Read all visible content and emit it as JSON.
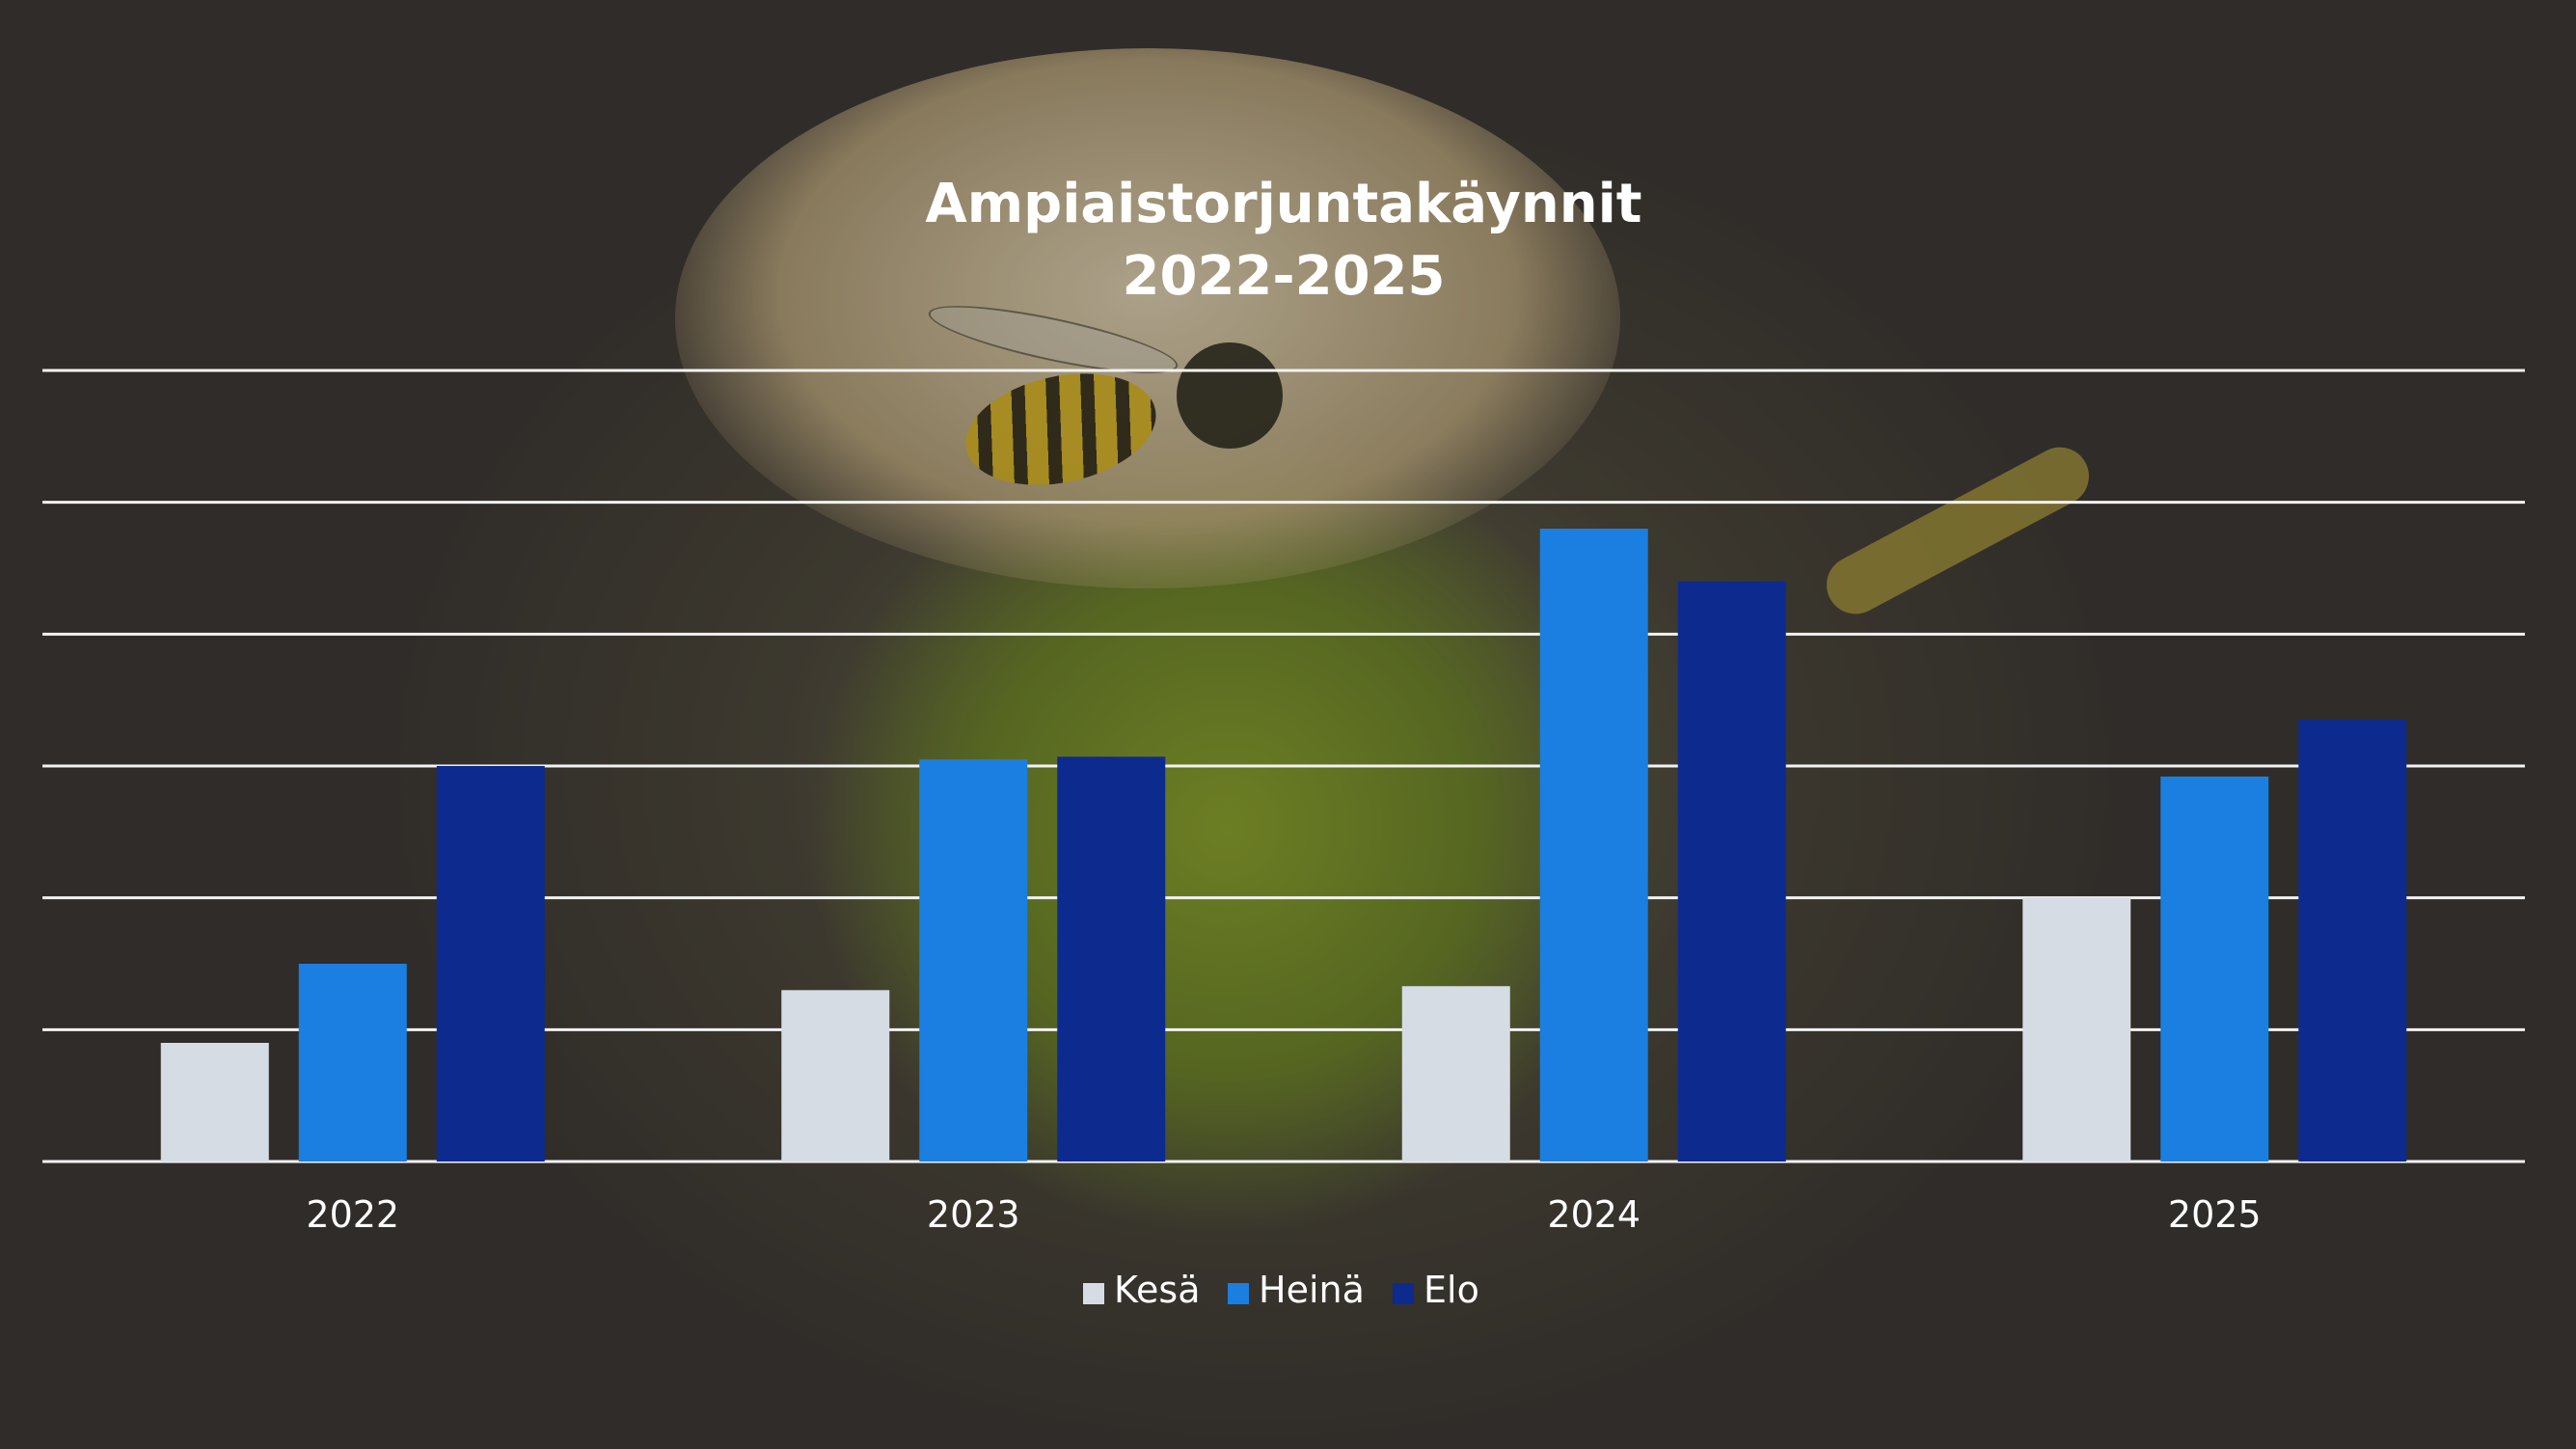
{
  "chart_data": {
    "type": "bar",
    "title": "Ampiaistorjuntakäynnit",
    "subtitle": "2022-2025",
    "categories": [
      "2022",
      "2023",
      "2024",
      "2025"
    ],
    "series": [
      {
        "name": "Kesä",
        "color": "#d5dce4",
        "values": [
          0.9,
          1.3,
          1.33,
          2.0
        ]
      },
      {
        "name": "Heinä",
        "color": "#1a7fe0",
        "values": [
          1.5,
          3.05,
          4.8,
          2.92
        ]
      },
      {
        "name": "Elo",
        "color": "#0d2a8f",
        "values": [
          3.0,
          3.07,
          4.4,
          3.35
        ]
      }
    ],
    "ylim": [
      0,
      6
    ],
    "gridlines": true,
    "legend_position": "bottom",
    "xlabel": "",
    "ylabel": ""
  }
}
